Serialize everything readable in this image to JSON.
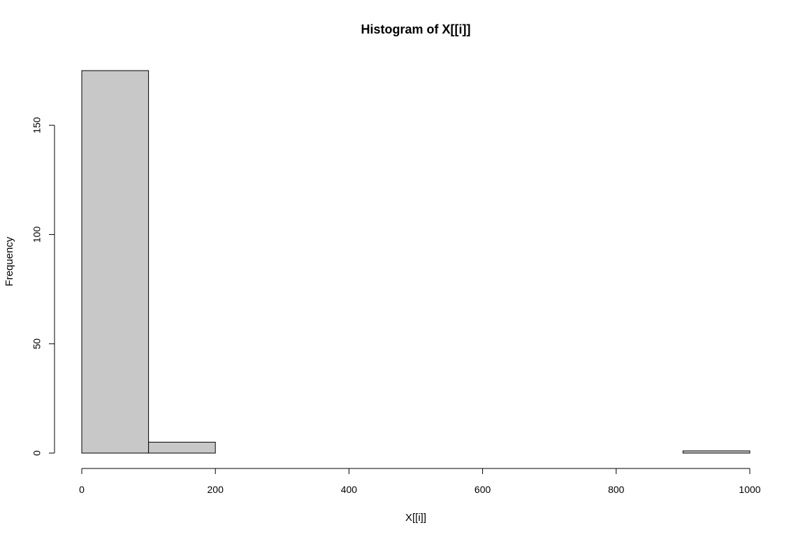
{
  "chart_data": {
    "type": "bar",
    "title": "Histogram of X[[i]]",
    "xlabel": "X[[i]]",
    "ylabel": "Frequency",
    "bins": [
      {
        "start": 0,
        "end": 100,
        "count": 175
      },
      {
        "start": 100,
        "end": 200,
        "count": 5
      },
      {
        "start": 200,
        "end": 300,
        "count": 0
      },
      {
        "start": 300,
        "end": 400,
        "count": 0
      },
      {
        "start": 400,
        "end": 500,
        "count": 0
      },
      {
        "start": 500,
        "end": 600,
        "count": 0
      },
      {
        "start": 600,
        "end": 700,
        "count": 0
      },
      {
        "start": 700,
        "end": 800,
        "count": 0
      },
      {
        "start": 800,
        "end": 900,
        "count": 0
      },
      {
        "start": 900,
        "end": 1000,
        "count": 1
      }
    ],
    "xticks": [
      0,
      200,
      400,
      600,
      800,
      1000
    ],
    "yticks": [
      0,
      50,
      100,
      150
    ],
    "xlim": [
      0,
      1000
    ],
    "ylim": [
      0,
      175
    ],
    "bar_color": "#c8c8c8",
    "border_color": "#000000",
    "grid": false,
    "legend": "none"
  }
}
